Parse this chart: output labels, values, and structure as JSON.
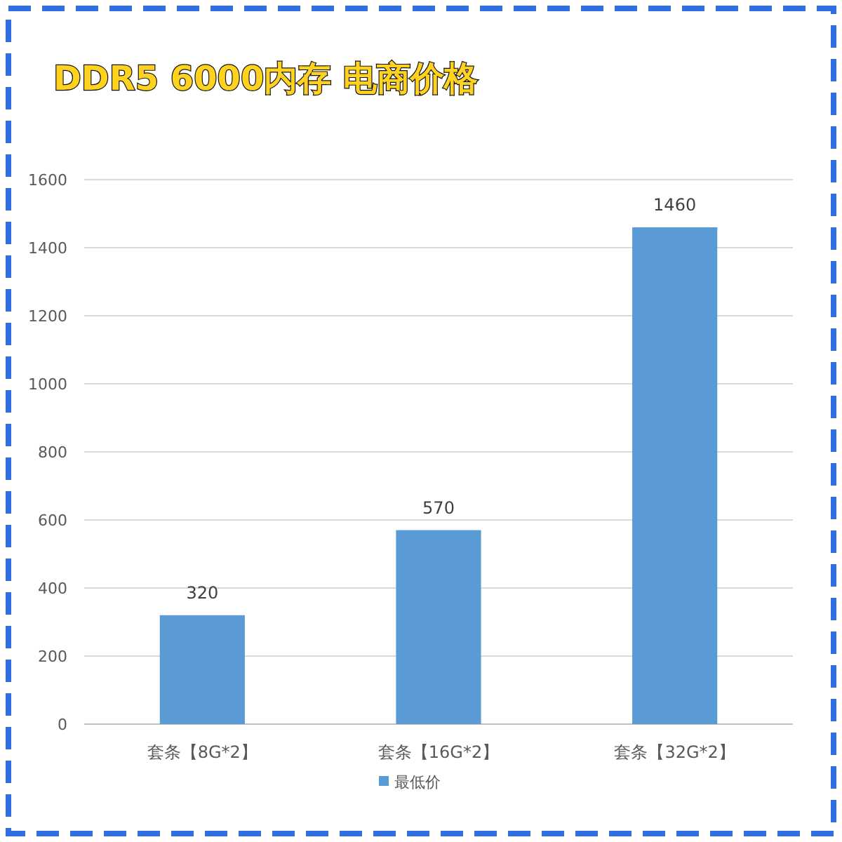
{
  "chart_data": {
    "type": "bar",
    "title": "DDR5 6000内存 电商价格",
    "categories": [
      "套条【8G*2】",
      "套条【16G*2】",
      "套条【32G*2】"
    ],
    "series": [
      {
        "name": "最低价",
        "color": "#5b9bd5",
        "values": [
          320,
          570,
          1460
        ]
      }
    ],
    "ylim": [
      0,
      1600
    ],
    "yticks": [
      0,
      200,
      400,
      600,
      800,
      1000,
      1200,
      1400,
      1600
    ],
    "grid": "y",
    "legend": "bottom",
    "data_labels": true
  }
}
